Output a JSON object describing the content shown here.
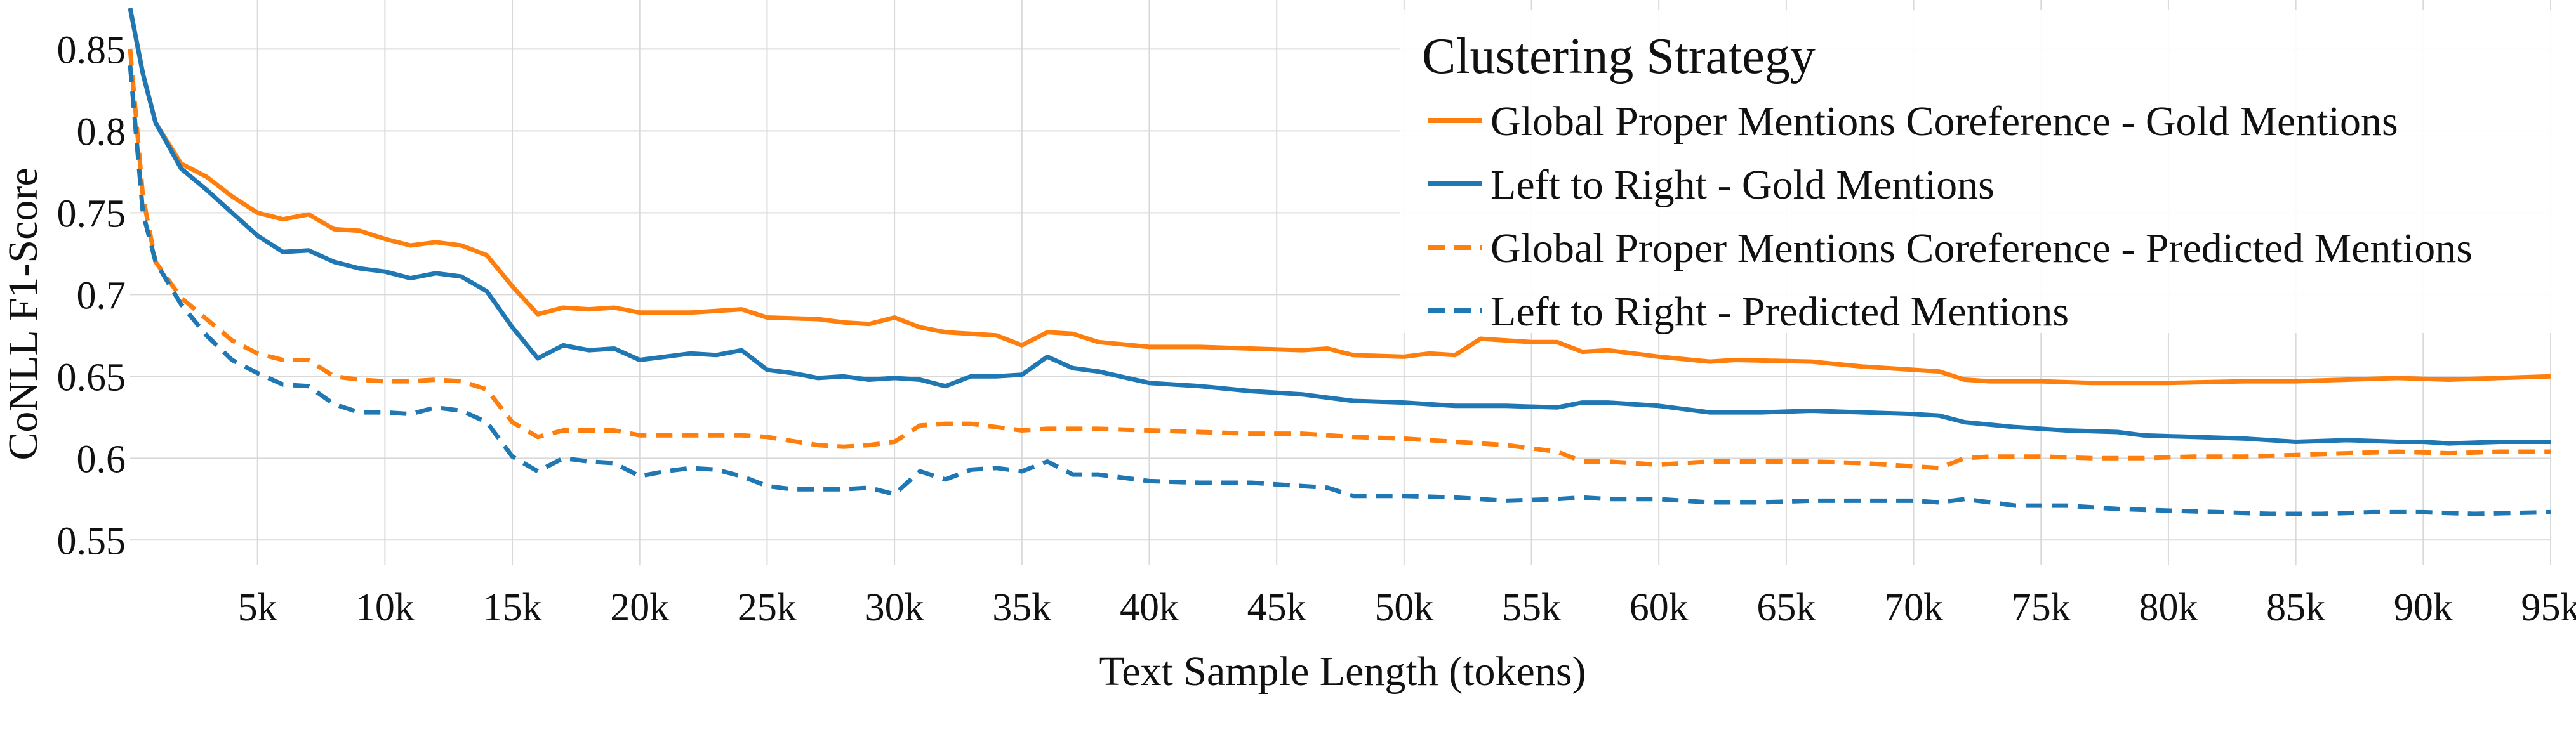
{
  "chart_data": {
    "type": "line",
    "title": "",
    "xlabel": "Text Sample Length (tokens)",
    "ylabel": "CoNLL F1-Score",
    "xlim": [
      0,
      95000
    ],
    "ylim": [
      0.535,
      0.88
    ],
    "grid": true,
    "x_ticks": [
      5000,
      10000,
      15000,
      20000,
      25000,
      30000,
      35000,
      40000,
      45000,
      50000,
      55000,
      60000,
      65000,
      70000,
      75000,
      80000,
      85000,
      90000,
      95000
    ],
    "x_tick_labels": [
      "5k",
      "10k",
      "15k",
      "20k",
      "25k",
      "30k",
      "35k",
      "40k",
      "45k",
      "50k",
      "55k",
      "60k",
      "65k",
      "70k",
      "75k",
      "80k",
      "85k",
      "90k",
      "95k"
    ],
    "y_ticks": [
      0.55,
      0.6,
      0.65,
      0.7,
      0.75,
      0.8,
      0.85
    ],
    "y_tick_labels": [
      "0.55",
      "0.6",
      "0.65",
      "0.7",
      "0.75",
      "0.8",
      "0.85"
    ],
    "legend": {
      "title": "Clustering Strategy",
      "placement": "top-right"
    },
    "series": [
      {
        "name": "Global Proper Mentions Coreference - Gold Mentions",
        "color": "#ff7f0e",
        "dash": "solid",
        "x": [
          0,
          500,
          1000,
          2000,
          3000,
          4000,
          5000,
          6000,
          7000,
          8000,
          9000,
          10000,
          11000,
          12000,
          13000,
          14000,
          15000,
          16000,
          17000,
          18000,
          19000,
          20000,
          22000,
          24000,
          25000,
          27000,
          28000,
          29000,
          30000,
          31000,
          32000,
          33000,
          34000,
          35000,
          36000,
          37000,
          38000,
          40000,
          42000,
          44000,
          46000,
          47000,
          48000,
          50000,
          51000,
          52000,
          53000,
          54000,
          55000,
          56000,
          57000,
          58000,
          59000,
          60000,
          62000,
          63000,
          66000,
          68000,
          70000,
          71000,
          72000,
          73000,
          75000,
          77000,
          79000,
          80000,
          83000,
          85000,
          87000,
          89000,
          91000,
          93000,
          95000
        ],
        "y": [
          0.875,
          0.835,
          0.805,
          0.78,
          0.772,
          0.76,
          0.75,
          0.746,
          0.749,
          0.74,
          0.739,
          0.734,
          0.73,
          0.732,
          0.73,
          0.724,
          0.705,
          0.688,
          0.692,
          0.691,
          0.692,
          0.689,
          0.689,
          0.691,
          0.686,
          0.685,
          0.683,
          0.682,
          0.686,
          0.68,
          0.677,
          0.676,
          0.675,
          0.669,
          0.677,
          0.676,
          0.671,
          0.668,
          0.668,
          0.667,
          0.666,
          0.667,
          0.663,
          0.662,
          0.664,
          0.663,
          0.673,
          0.672,
          0.671,
          0.671,
          0.665,
          0.666,
          0.664,
          0.662,
          0.659,
          0.66,
          0.659,
          0.656,
          0.654,
          0.653,
          0.648,
          0.647,
          0.647,
          0.646,
          0.646,
          0.646,
          0.647,
          0.647,
          0.648,
          0.649,
          0.648,
          0.649,
          0.65
        ]
      },
      {
        "name": "Left to Right - Gold Mentions",
        "color": "#1f77b4",
        "dash": "solid",
        "x": [
          0,
          500,
          1000,
          2000,
          3000,
          4000,
          5000,
          6000,
          7000,
          8000,
          9000,
          10000,
          11000,
          12000,
          13000,
          14000,
          15000,
          16000,
          17000,
          18000,
          19000,
          20000,
          21000,
          22000,
          23000,
          24000,
          25000,
          26000,
          27000,
          28000,
          29000,
          30000,
          31000,
          32000,
          33000,
          34000,
          35000,
          36000,
          37000,
          38000,
          40000,
          42000,
          44000,
          46000,
          48000,
          50000,
          52000,
          54000,
          56000,
          57000,
          58000,
          60000,
          62000,
          64000,
          66000,
          68000,
          70000,
          71000,
          72000,
          74000,
          76000,
          78000,
          79000,
          81000,
          83000,
          85000,
          87000,
          89000,
          90000,
          91000,
          93000,
          95000
        ],
        "y": [
          0.875,
          0.835,
          0.805,
          0.777,
          0.764,
          0.75,
          0.736,
          0.726,
          0.727,
          0.72,
          0.716,
          0.714,
          0.71,
          0.713,
          0.711,
          0.702,
          0.68,
          0.661,
          0.669,
          0.666,
          0.667,
          0.66,
          0.662,
          0.664,
          0.663,
          0.666,
          0.654,
          0.652,
          0.649,
          0.65,
          0.648,
          0.649,
          0.648,
          0.644,
          0.65,
          0.65,
          0.651,
          0.662,
          0.655,
          0.653,
          0.646,
          0.644,
          0.641,
          0.639,
          0.635,
          0.634,
          0.632,
          0.632,
          0.631,
          0.634,
          0.634,
          0.632,
          0.628,
          0.628,
          0.629,
          0.628,
          0.627,
          0.626,
          0.622,
          0.619,
          0.617,
          0.616,
          0.614,
          0.613,
          0.612,
          0.61,
          0.611,
          0.61,
          0.61,
          0.609,
          0.61,
          0.61
        ]
      },
      {
        "name": "Global Proper Mentions Coreference - Predicted Mentions",
        "color": "#ff7f0e",
        "dash": "dashed",
        "x": [
          0,
          500,
          1000,
          2000,
          3000,
          4000,
          5000,
          6000,
          7000,
          8000,
          9000,
          10000,
          11000,
          12000,
          13000,
          14000,
          15000,
          16000,
          17000,
          18000,
          19000,
          20000,
          22000,
          24000,
          25000,
          27000,
          28000,
          29000,
          30000,
          31000,
          32000,
          33000,
          34000,
          35000,
          36000,
          38000,
          40000,
          42000,
          44000,
          46000,
          48000,
          50000,
          52000,
          54000,
          55000,
          56000,
          57000,
          58000,
          60000,
          62000,
          64000,
          66000,
          68000,
          70000,
          71000,
          72000,
          73000,
          75000,
          77000,
          79000,
          81000,
          83000,
          85000,
          87000,
          89000,
          91000,
          93000,
          95000
        ],
        "y": [
          0.85,
          0.76,
          0.72,
          0.698,
          0.685,
          0.672,
          0.664,
          0.66,
          0.66,
          0.65,
          0.648,
          0.647,
          0.647,
          0.648,
          0.647,
          0.642,
          0.622,
          0.613,
          0.617,
          0.617,
          0.617,
          0.614,
          0.614,
          0.614,
          0.613,
          0.608,
          0.607,
          0.608,
          0.61,
          0.62,
          0.621,
          0.621,
          0.619,
          0.617,
          0.618,
          0.618,
          0.617,
          0.616,
          0.615,
          0.615,
          0.613,
          0.612,
          0.61,
          0.608,
          0.606,
          0.604,
          0.598,
          0.598,
          0.596,
          0.598,
          0.598,
          0.598,
          0.597,
          0.595,
          0.594,
          0.6,
          0.601,
          0.601,
          0.6,
          0.6,
          0.601,
          0.601,
          0.602,
          0.603,
          0.604,
          0.603,
          0.604,
          0.604
        ]
      },
      {
        "name": "Left to Right - Predicted Mentions",
        "color": "#1f77b4",
        "dash": "dashed",
        "x": [
          0,
          500,
          1000,
          2000,
          3000,
          4000,
          5000,
          6000,
          7000,
          8000,
          9000,
          10000,
          11000,
          12000,
          13000,
          14000,
          15000,
          16000,
          17000,
          18000,
          19000,
          20000,
          21000,
          22000,
          23000,
          24000,
          25000,
          26000,
          27000,
          28000,
          29000,
          30000,
          31000,
          32000,
          33000,
          34000,
          35000,
          36000,
          37000,
          38000,
          40000,
          42000,
          44000,
          46000,
          47000,
          48000,
          50000,
          52000,
          54000,
          56000,
          57000,
          58000,
          60000,
          62000,
          64000,
          66000,
          68000,
          70000,
          71000,
          72000,
          74000,
          76000,
          78000,
          80000,
          82000,
          84000,
          86000,
          88000,
          90000,
          92000,
          95000
        ],
        "y": [
          0.84,
          0.75,
          0.72,
          0.694,
          0.675,
          0.66,
          0.652,
          0.645,
          0.644,
          0.633,
          0.628,
          0.628,
          0.627,
          0.631,
          0.629,
          0.622,
          0.601,
          0.592,
          0.6,
          0.598,
          0.597,
          0.589,
          0.592,
          0.594,
          0.593,
          0.589,
          0.583,
          0.581,
          0.581,
          0.581,
          0.582,
          0.578,
          0.592,
          0.587,
          0.593,
          0.594,
          0.592,
          0.598,
          0.59,
          0.59,
          0.586,
          0.585,
          0.585,
          0.583,
          0.582,
          0.577,
          0.577,
          0.576,
          0.574,
          0.575,
          0.576,
          0.575,
          0.575,
          0.573,
          0.573,
          0.574,
          0.574,
          0.574,
          0.573,
          0.575,
          0.571,
          0.571,
          0.569,
          0.568,
          0.567,
          0.566,
          0.566,
          0.567,
          0.567,
          0.566,
          0.567
        ]
      }
    ]
  }
}
